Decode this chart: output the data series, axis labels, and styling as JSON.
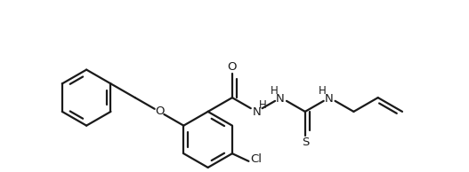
{
  "bg_color": "#ffffff",
  "line_color": "#1a1a1a",
  "line_width": 1.6,
  "font_size": 9.5,
  "figsize": [
    5.27,
    1.94
  ],
  "dpi": 100,
  "xlim": [
    -5.8,
    5.8
  ],
  "ylim": [
    -2.2,
    2.2
  ]
}
